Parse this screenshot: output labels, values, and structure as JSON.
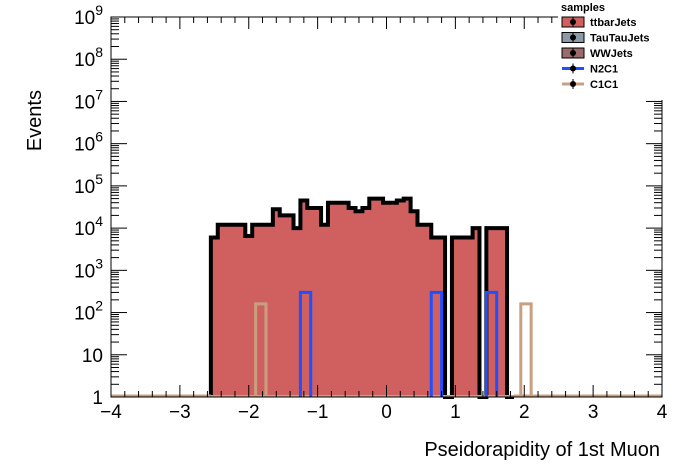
{
  "chart_data": {
    "type": "bar",
    "style": "stacked histogram, step outline",
    "xlabel": "Pseidorapidity of 1st Muon",
    "ylabel": "Events",
    "xlim": [
      -4,
      4
    ],
    "ylim": [
      1,
      1000000000
    ],
    "log_y": true,
    "x_ticks": [
      "−4",
      "−3",
      "−2",
      "−1",
      "0",
      "1",
      "2",
      "3",
      "4"
    ],
    "y_ticks": [
      "1",
      "10",
      "10^2",
      "10^3",
      "10^4",
      "10^5",
      "10^6",
      "10^7",
      "10^8",
      "10^9"
    ],
    "grid": false,
    "legend": {
      "title": "samples",
      "position": "top-right",
      "entries": [
        {
          "name": "ttbarJets",
          "color": "#d06060"
        },
        {
          "name": "TauTauJets",
          "color": "#8a9aa8"
        },
        {
          "name": "WWJets",
          "color": "#9b6a6a"
        },
        {
          "name": "N2C1",
          "color": "#1f4fff"
        },
        {
          "name": "C1C1",
          "color": "#c8a080"
        }
      ]
    },
    "bin_edges": [
      -4,
      -3.8,
      -3.6,
      -3.4,
      -3.2,
      -3.0,
      -2.8,
      -2.6,
      -2.4,
      -2.2,
      -2.0,
      -1.8,
      -1.6,
      -1.4,
      -1.2,
      -1.0,
      -0.8,
      -0.6,
      -0.4,
      -0.2,
      0.0,
      0.2,
      0.4,
      0.6,
      0.8,
      1.0,
      1.2,
      1.4,
      1.6,
      1.8,
      2.0,
      2.2,
      2.4,
      2.6,
      2.8,
      3.0,
      3.2,
      3.4,
      3.6,
      3.8,
      4.0
    ],
    "series": [
      {
        "name": "ttbarJets",
        "color": "#d06060",
        "outline": "#000000",
        "bin_width": 0.1,
        "x_start": -2.55,
        "values": [
          6000,
          12000,
          12000,
          12000,
          12000,
          6500,
          12000,
          12000,
          12000,
          28000,
          20000,
          20000,
          10000,
          45000,
          30000,
          30000,
          12000,
          40000,
          40000,
          40000,
          30000,
          25000,
          30000,
          50000,
          50000,
          40000,
          40000,
          45000,
          50000,
          25000,
          12000,
          12000,
          6000,
          6000,
          1,
          6000,
          6000,
          6000,
          10000,
          1,
          10000,
          10000,
          10000,
          1
        ]
      },
      {
        "name": "N2C1",
        "color": "#1f4fff",
        "bars": [
          {
            "x0": -1.25,
            "x1": -1.1,
            "value": 300
          },
          {
            "x0": 0.65,
            "x1": 0.8,
            "value": 300
          },
          {
            "x0": 1.45,
            "x1": 1.6,
            "value": 300
          }
        ]
      },
      {
        "name": "C1C1",
        "color": "#c8a080",
        "bars": [
          {
            "x0": -1.9,
            "x1": -1.75,
            "value": 160
          },
          {
            "x0": 1.95,
            "x1": 2.1,
            "value": 160
          }
        ]
      }
    ]
  }
}
